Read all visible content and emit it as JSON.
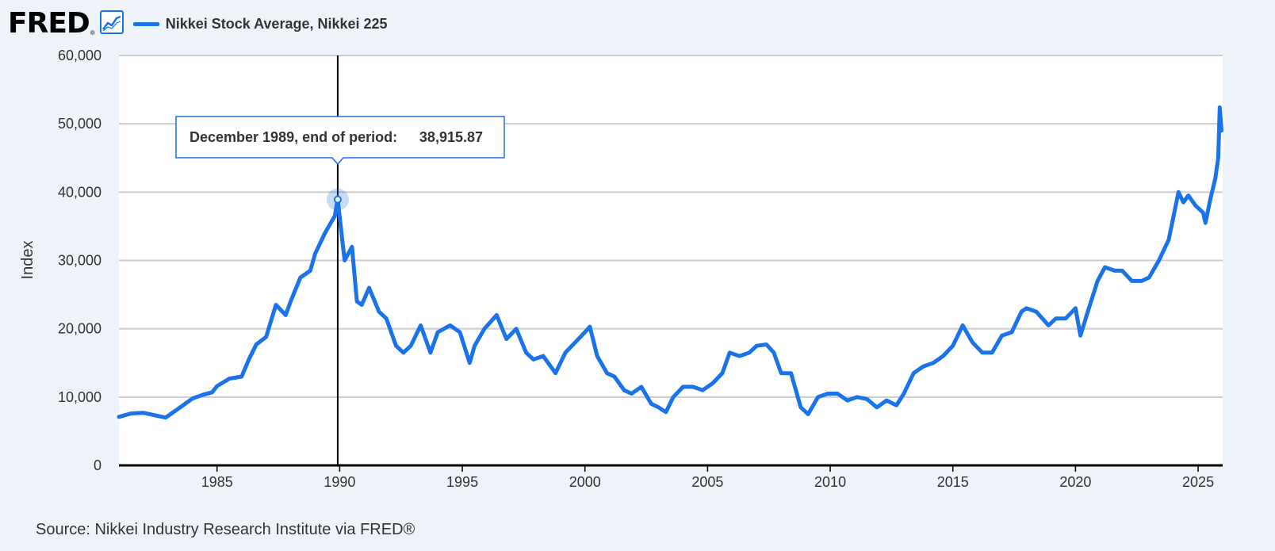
{
  "header": {
    "logo_text": "FRED",
    "logo_reg": "®",
    "legend_label": "Nikkei Stock Average, Nikkei 225"
  },
  "source": "Source: Nikkei Industry Research Institute via FRED®",
  "colors": {
    "series": "#1a73e8",
    "background": "#eef3fa",
    "grid": "#cccccc"
  },
  "chart_data": {
    "type": "line",
    "title": "Nikkei Stock Average, Nikkei 225",
    "xlabel": "",
    "ylabel": "Index",
    "xlim": [
      1981.0,
      2026.0
    ],
    "ylim": [
      0,
      60000
    ],
    "yticks": [
      0,
      10000,
      20000,
      30000,
      40000,
      50000,
      60000
    ],
    "ytick_labels": [
      "0",
      "10,000",
      "20,000",
      "30,000",
      "40,000",
      "50,000",
      "60,000"
    ],
    "xticks": [
      1985,
      1990,
      1995,
      2000,
      2005,
      2010,
      2015,
      2020,
      2025
    ],
    "xtick_labels": [
      "1985",
      "1990",
      "1995",
      "2000",
      "2005",
      "2010",
      "2015",
      "2020",
      "2025"
    ],
    "grid": true,
    "series": [
      {
        "name": "Nikkei Stock Average, Nikkei 225",
        "x": [
          1981.0,
          1981.5,
          1982.0,
          1982.5,
          1982.9,
          1983.5,
          1984.0,
          1984.4,
          1984.8,
          1985.0,
          1985.5,
          1986.0,
          1986.3,
          1986.6,
          1987.0,
          1987.4,
          1987.8,
          1988.0,
          1988.4,
          1988.8,
          1989.0,
          1989.4,
          1989.8,
          1989.92,
          1990.2,
          1990.5,
          1990.7,
          1990.9,
          1991.2,
          1991.6,
          1991.9,
          1992.3,
          1992.6,
          1992.9,
          1993.3,
          1993.7,
          1994.0,
          1994.5,
          1994.9,
          1995.3,
          1995.5,
          1995.9,
          1996.4,
          1996.8,
          1997.2,
          1997.6,
          1997.9,
          1998.3,
          1998.8,
          1999.2,
          1999.6,
          2000.0,
          2000.2,
          2000.5,
          2000.9,
          2001.2,
          2001.6,
          2001.9,
          2002.3,
          2002.7,
          2003.0,
          2003.3,
          2003.6,
          2004.0,
          2004.4,
          2004.8,
          2005.2,
          2005.6,
          2005.9,
          2006.3,
          2006.7,
          2007.0,
          2007.4,
          2007.7,
          2008.0,
          2008.4,
          2008.8,
          2009.1,
          2009.5,
          2009.9,
          2010.3,
          2010.7,
          2011.1,
          2011.5,
          2011.9,
          2012.3,
          2012.7,
          2013.0,
          2013.4,
          2013.8,
          2014.2,
          2014.6,
          2015.0,
          2015.4,
          2015.8,
          2016.2,
          2016.6,
          2017.0,
          2017.4,
          2017.8,
          2018.0,
          2018.4,
          2018.9,
          2019.2,
          2019.6,
          2020.0,
          2020.2,
          2020.5,
          2020.9,
          2021.2,
          2021.6,
          2021.9,
          2022.3,
          2022.7,
          2023.0,
          2023.4,
          2023.8,
          2024.2,
          2024.4,
          2024.6,
          2024.9,
          2025.2,
          2025.3,
          2025.5,
          2025.7,
          2025.82,
          2025.88,
          2025.95
        ],
        "values": [
          7100,
          7600,
          7700,
          7300,
          7000,
          8500,
          9800,
          10300,
          10700,
          11600,
          12700,
          13000,
          15500,
          17700,
          18800,
          23500,
          22000,
          24000,
          27500,
          28500,
          31000,
          34000,
          36500,
          38915.87,
          30000,
          32000,
          24000,
          23500,
          26000,
          22500,
          21500,
          17500,
          16500,
          17500,
          20500,
          16500,
          19500,
          20500,
          19500,
          15000,
          17500,
          20000,
          22000,
          18500,
          20000,
          16500,
          15500,
          16000,
          13500,
          16500,
          18000,
          19500,
          20300,
          16000,
          13500,
          13000,
          11000,
          10500,
          11500,
          9000,
          8500,
          7800,
          10000,
          11500,
          11500,
          11000,
          12000,
          13500,
          16500,
          16000,
          16500,
          17500,
          17700,
          16500,
          13500,
          13500,
          8500,
          7500,
          10000,
          10500,
          10500,
          9500,
          10000,
          9700,
          8500,
          9500,
          8800,
          10500,
          13500,
          14500,
          15000,
          16000,
          17500,
          20500,
          18000,
          16500,
          16500,
          19000,
          19500,
          22500,
          23000,
          22500,
          20500,
          21500,
          21500,
          23000,
          19000,
          22500,
          27000,
          29000,
          28500,
          28500,
          27000,
          27000,
          27500,
          30000,
          33000,
          40000,
          38500,
          39500,
          38000,
          37000,
          35500,
          39000,
          42000,
          45000,
          52400,
          49000
        ]
      }
    ],
    "annotations": [
      {
        "type": "tooltip",
        "x": 1989.92,
        "value": 38915.87,
        "label": "December 1989, end of period:",
        "value_label": "38,915.87"
      }
    ]
  }
}
